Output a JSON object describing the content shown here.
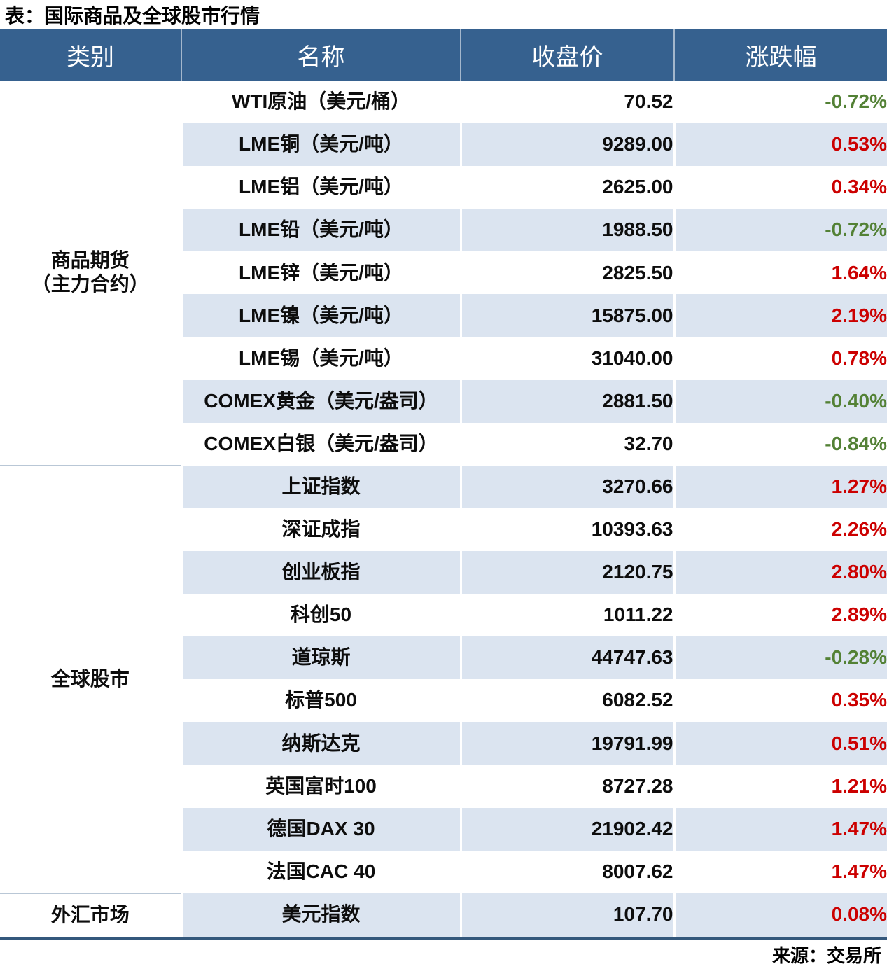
{
  "title": "表：国际商品及全球股市行情",
  "source": "来源：交易所",
  "colors": {
    "header_bg": "#36618f",
    "stripe_row": "#dbe4f0",
    "positive_red": "#cc0000",
    "negative_green": "#538135",
    "bottom_border": "#34587c",
    "category_divider": "#b9c7d6"
  },
  "table": {
    "headers": [
      "类别",
      "名称",
      "收盘价",
      "涨跌幅"
    ],
    "sections": [
      {
        "category_lines": [
          "商品期货",
          "（主力合约）"
        ],
        "rows": [
          {
            "name": "WTI原油（美元/桶）",
            "close": "70.52",
            "change": "-0.72%"
          },
          {
            "name": "LME铜（美元/吨）",
            "close": "9289.00",
            "change": "0.53%"
          },
          {
            "name": "LME铝（美元/吨）",
            "close": "2625.00",
            "change": "0.34%"
          },
          {
            "name": "LME铅（美元/吨）",
            "close": "1988.50",
            "change": "-0.72%"
          },
          {
            "name": "LME锌（美元/吨）",
            "close": "2825.50",
            "change": "1.64%"
          },
          {
            "name": "LME镍（美元/吨）",
            "close": "15875.00",
            "change": "2.19%"
          },
          {
            "name": "LME锡（美元/吨）",
            "close": "31040.00",
            "change": "0.78%"
          },
          {
            "name": "COMEX黄金（美元/盎司）",
            "close": "2881.50",
            "change": "-0.40%"
          },
          {
            "name": "COMEX白银（美元/盎司）",
            "close": "32.70",
            "change": "-0.84%"
          }
        ]
      },
      {
        "category_lines": [
          "全球股市"
        ],
        "rows": [
          {
            "name": "上证指数",
            "close": "3270.66",
            "change": "1.27%"
          },
          {
            "name": "深证成指",
            "close": "10393.63",
            "change": "2.26%"
          },
          {
            "name": "创业板指",
            "close": "2120.75",
            "change": "2.80%"
          },
          {
            "name": "科创50",
            "close": "1011.22",
            "change": "2.89%"
          },
          {
            "name": "道琼斯",
            "close": "44747.63",
            "change": "-0.28%"
          },
          {
            "name": "标普500",
            "close": "6082.52",
            "change": "0.35%"
          },
          {
            "name": "纳斯达克",
            "close": "19791.99",
            "change": "0.51%"
          },
          {
            "name": "英国富时100",
            "close": "8727.28",
            "change": "1.21%"
          },
          {
            "name": "德国DAX 30",
            "close": "21902.42",
            "change": "1.47%"
          },
          {
            "name": "法国CAC 40",
            "close": "8007.62",
            "change": "1.47%"
          }
        ]
      },
      {
        "category_lines": [
          "外汇市场"
        ],
        "rows": [
          {
            "name": "美元指数",
            "close": "107.70",
            "change": "0.08%"
          }
        ]
      }
    ]
  }
}
